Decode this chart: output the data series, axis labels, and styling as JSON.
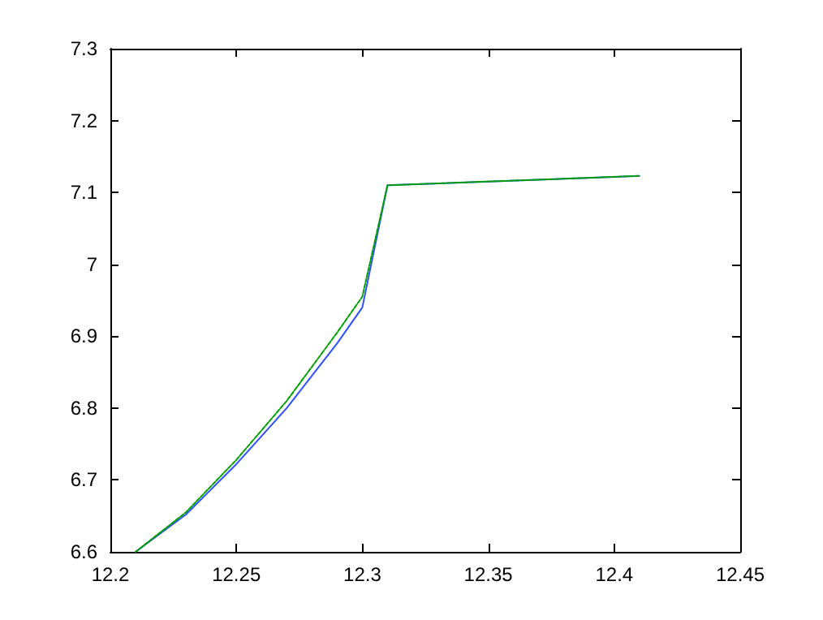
{
  "chart_data": {
    "type": "line",
    "x": [
      12.21,
      12.23,
      12.25,
      12.27,
      12.29,
      12.3,
      12.31,
      12.41
    ],
    "series": [
      {
        "color": "#00a000",
        "line_style": "dashed",
        "values": [
          6.6,
          6.655,
          6.728,
          6.81,
          6.905,
          6.955,
          7.11,
          7.123
        ]
      },
      {
        "color": "#3050ff",
        "line_style": "solid",
        "values": [
          6.6,
          6.652,
          6.722,
          6.8,
          6.89,
          6.94,
          7.11,
          7.123
        ]
      }
    ],
    "xlim": [
      12.2,
      12.45
    ],
    "xticks": [
      12.2,
      12.25,
      12.3,
      12.35,
      12.4,
      12.45
    ],
    "ylim": [
      6.6,
      7.3
    ],
    "yticks": [
      6.6,
      6.7,
      6.8,
      6.9,
      7,
      7.1,
      7.2,
      7.3
    ],
    "grid": false,
    "marker": "none"
  }
}
